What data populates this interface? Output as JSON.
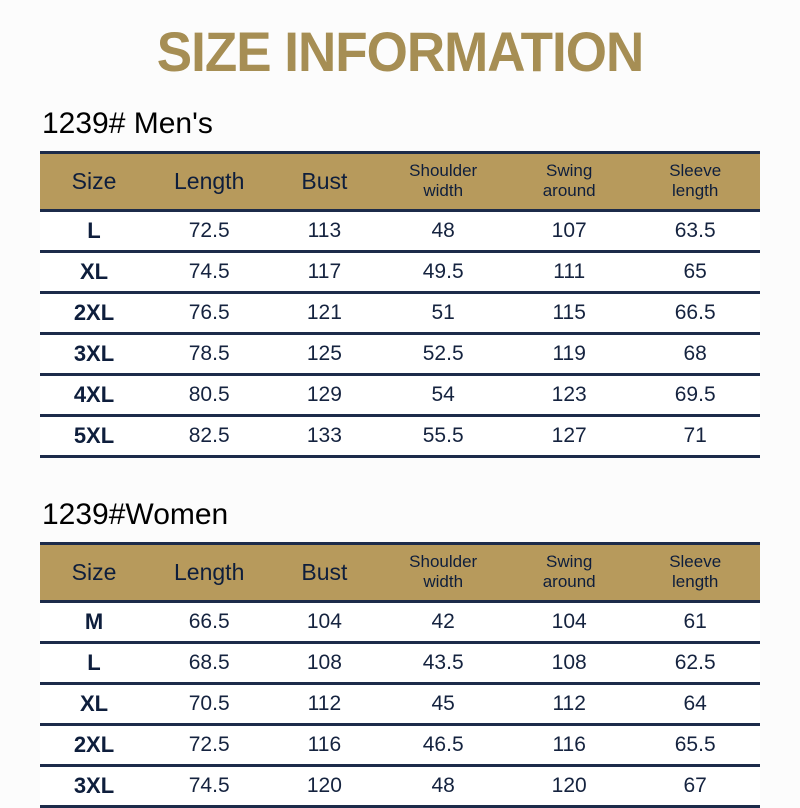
{
  "page": {
    "title": "SIZE INFORMATION",
    "background_color": "#fcfcfc",
    "title_color": "#a68e54",
    "header_bg_color": "#b79a5c",
    "border_color": "#1c2b4a",
    "text_color": "#15233f"
  },
  "tables": [
    {
      "heading": "1239# Men's",
      "columns": [
        "Size",
        "Length",
        "Bust",
        "Shoulder\nwidth",
        "Swing\naround",
        "Sleeve\nlength"
      ],
      "rows": [
        [
          "L",
          "72.5",
          "113",
          "48",
          "107",
          "63.5"
        ],
        [
          "XL",
          "74.5",
          "117",
          "49.5",
          "111",
          "65"
        ],
        [
          "2XL",
          "76.5",
          "121",
          "51",
          "115",
          "66.5"
        ],
        [
          "3XL",
          "78.5",
          "125",
          "52.5",
          "119",
          "68"
        ],
        [
          "4XL",
          "80.5",
          "129",
          "54",
          "123",
          "69.5"
        ],
        [
          "5XL",
          "82.5",
          "133",
          "55.5",
          "127",
          "71"
        ]
      ]
    },
    {
      "heading": "1239#Women",
      "columns": [
        "Size",
        "Length",
        "Bust",
        "Shoulder\nwidth",
        "Swing\naround",
        "Sleeve\nlength"
      ],
      "rows": [
        [
          "M",
          "66.5",
          "104",
          "42",
          "104",
          "61"
        ],
        [
          "L",
          "68.5",
          "108",
          "43.5",
          "108",
          "62.5"
        ],
        [
          "XL",
          "70.5",
          "112",
          "45",
          "112",
          "64"
        ],
        [
          "2XL",
          "72.5",
          "116",
          "46.5",
          "116",
          "65.5"
        ],
        [
          "3XL",
          "74.5",
          "120",
          "48",
          "120",
          "67"
        ]
      ]
    }
  ],
  "chart_data": [
    {
      "type": "table",
      "title": "1239# Men's",
      "columns": [
        "Size",
        "Length",
        "Bust",
        "Shoulder width",
        "Swing around",
        "Sleeve length"
      ],
      "rows": [
        [
          "L",
          72.5,
          113,
          48,
          107,
          63.5
        ],
        [
          "XL",
          74.5,
          117,
          49.5,
          111,
          65
        ],
        [
          "2XL",
          76.5,
          121,
          51,
          115,
          66.5
        ],
        [
          "3XL",
          78.5,
          125,
          52.5,
          119,
          68
        ],
        [
          "4XL",
          80.5,
          129,
          54,
          123,
          69.5
        ],
        [
          "5XL",
          82.5,
          133,
          55.5,
          127,
          71
        ]
      ]
    },
    {
      "type": "table",
      "title": "1239#Women",
      "columns": [
        "Size",
        "Length",
        "Bust",
        "Shoulder width",
        "Swing around",
        "Sleeve length"
      ],
      "rows": [
        [
          "M",
          66.5,
          104,
          42,
          104,
          61
        ],
        [
          "L",
          68.5,
          108,
          43.5,
          108,
          62.5
        ],
        [
          "XL",
          70.5,
          112,
          45,
          112,
          64
        ],
        [
          "2XL",
          72.5,
          116,
          46.5,
          116,
          65.5
        ],
        [
          "3XL",
          74.5,
          120,
          48,
          120,
          67
        ]
      ]
    }
  ]
}
